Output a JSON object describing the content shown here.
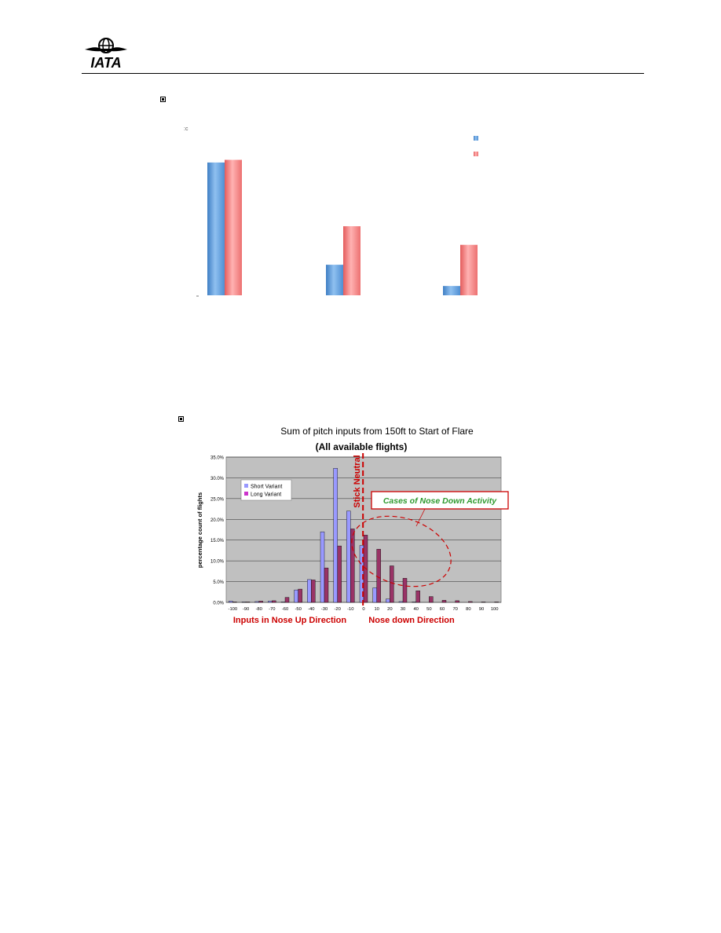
{
  "header": {
    "logo_text": "IATA"
  },
  "chart1": {
    "chart_data": {
      "type": "bar",
      "categories": [
        "",
        "",
        ""
      ],
      "series": [
        {
          "values": [
            100,
            23,
            7
          ],
          "color": "#5b9bd5"
        },
        {
          "values": [
            102,
            52,
            38
          ],
          "color": "#f07c7c"
        }
      ],
      "ylim": [
        0,
        110
      ],
      "legend_entries": [
        "",
        ""
      ]
    }
  },
  "chart2": {
    "chart_data": {
      "type": "bar",
      "title": "Sum of  pitch inputs from 150ft to Start of Flare",
      "subtitle": "(All available flights)",
      "ylabel": "percentage count of flights",
      "ylim": [
        0,
        35
      ],
      "y_ticks": [
        "0.0%",
        "5.0%",
        "10.0%",
        "15.0%",
        "20.0%",
        "25.0%",
        "30.0%",
        "35.0%"
      ],
      "categories": [
        "-100",
        "-90",
        "-80",
        "-70",
        "-60",
        "-50",
        "-40",
        "-30",
        "-20",
        "-10",
        "0",
        "10",
        "20",
        "30",
        "40",
        "50",
        "60",
        "70",
        "80",
        "90",
        "100"
      ],
      "series": [
        {
          "name": "Short Variant",
          "color": "#9999ff",
          "values": [
            0.3,
            0.1,
            0.2,
            0.3,
            0.1,
            3.0,
            5.5,
            17.0,
            32.3,
            22.0,
            13.7,
            3.5,
            0.8,
            0.2,
            0.1,
            0.0,
            0.0,
            0.0,
            0.0,
            0.0,
            0.0
          ]
        },
        {
          "name": "Long Variant",
          "color": "#993366",
          "values": [
            0.1,
            0.1,
            0.3,
            0.4,
            1.2,
            3.2,
            5.4,
            8.3,
            13.6,
            17.7,
            16.2,
            12.8,
            8.8,
            5.8,
            2.8,
            1.4,
            0.5,
            0.4,
            0.2,
            0.1,
            0.1
          ]
        }
      ],
      "annotations": {
        "stick_neutral": "Stick Neutral",
        "nose_down_box": "Cases of Nose Down Activity",
        "left_dir": "Inputs in Nose Up Direction",
        "right_dir": "Nose down Direction"
      }
    }
  }
}
